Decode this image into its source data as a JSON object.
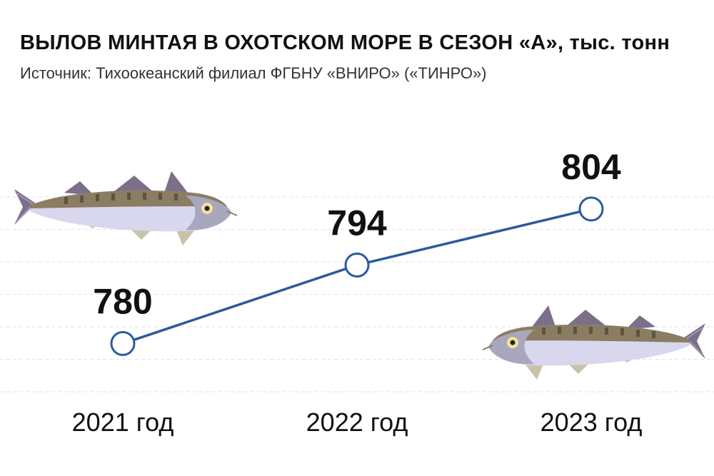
{
  "header": {
    "title": "ВЫЛОВ МИНТАЯ В ОХОТСКОМ МОРЕ В СЕЗОН «А»",
    "unit": ", тыс. тонн",
    "source": "Источник: Тихоокеанский филиал ФГБНУ «ВНИРО» («ТИНРО»)"
  },
  "colors": {
    "line": "#2d5a9b",
    "marker_fill": "#ffffff",
    "grid": "#e2e2e2",
    "fish_body": "#8a7d62",
    "fish_belly": "#d9d7ee",
    "fish_fin": "#7b6f8a"
  },
  "icons": [
    "pollock-fish-icon",
    "pollock-fish-icon"
  ],
  "chart_data": {
    "type": "line",
    "title": "ВЫЛОВ МИНТАЯ В ОХОТСКОМ МОРЕ В СЕЗОН «А», тыс. тонн",
    "xlabel": "",
    "ylabel": "",
    "categories": [
      "2021 год",
      "2022 год",
      "2023 год"
    ],
    "values": [
      780,
      794,
      804
    ],
    "data_labels": [
      "780",
      "794",
      "804"
    ],
    "ylim": [
      770,
      812
    ],
    "grid": true,
    "legend": "none"
  }
}
